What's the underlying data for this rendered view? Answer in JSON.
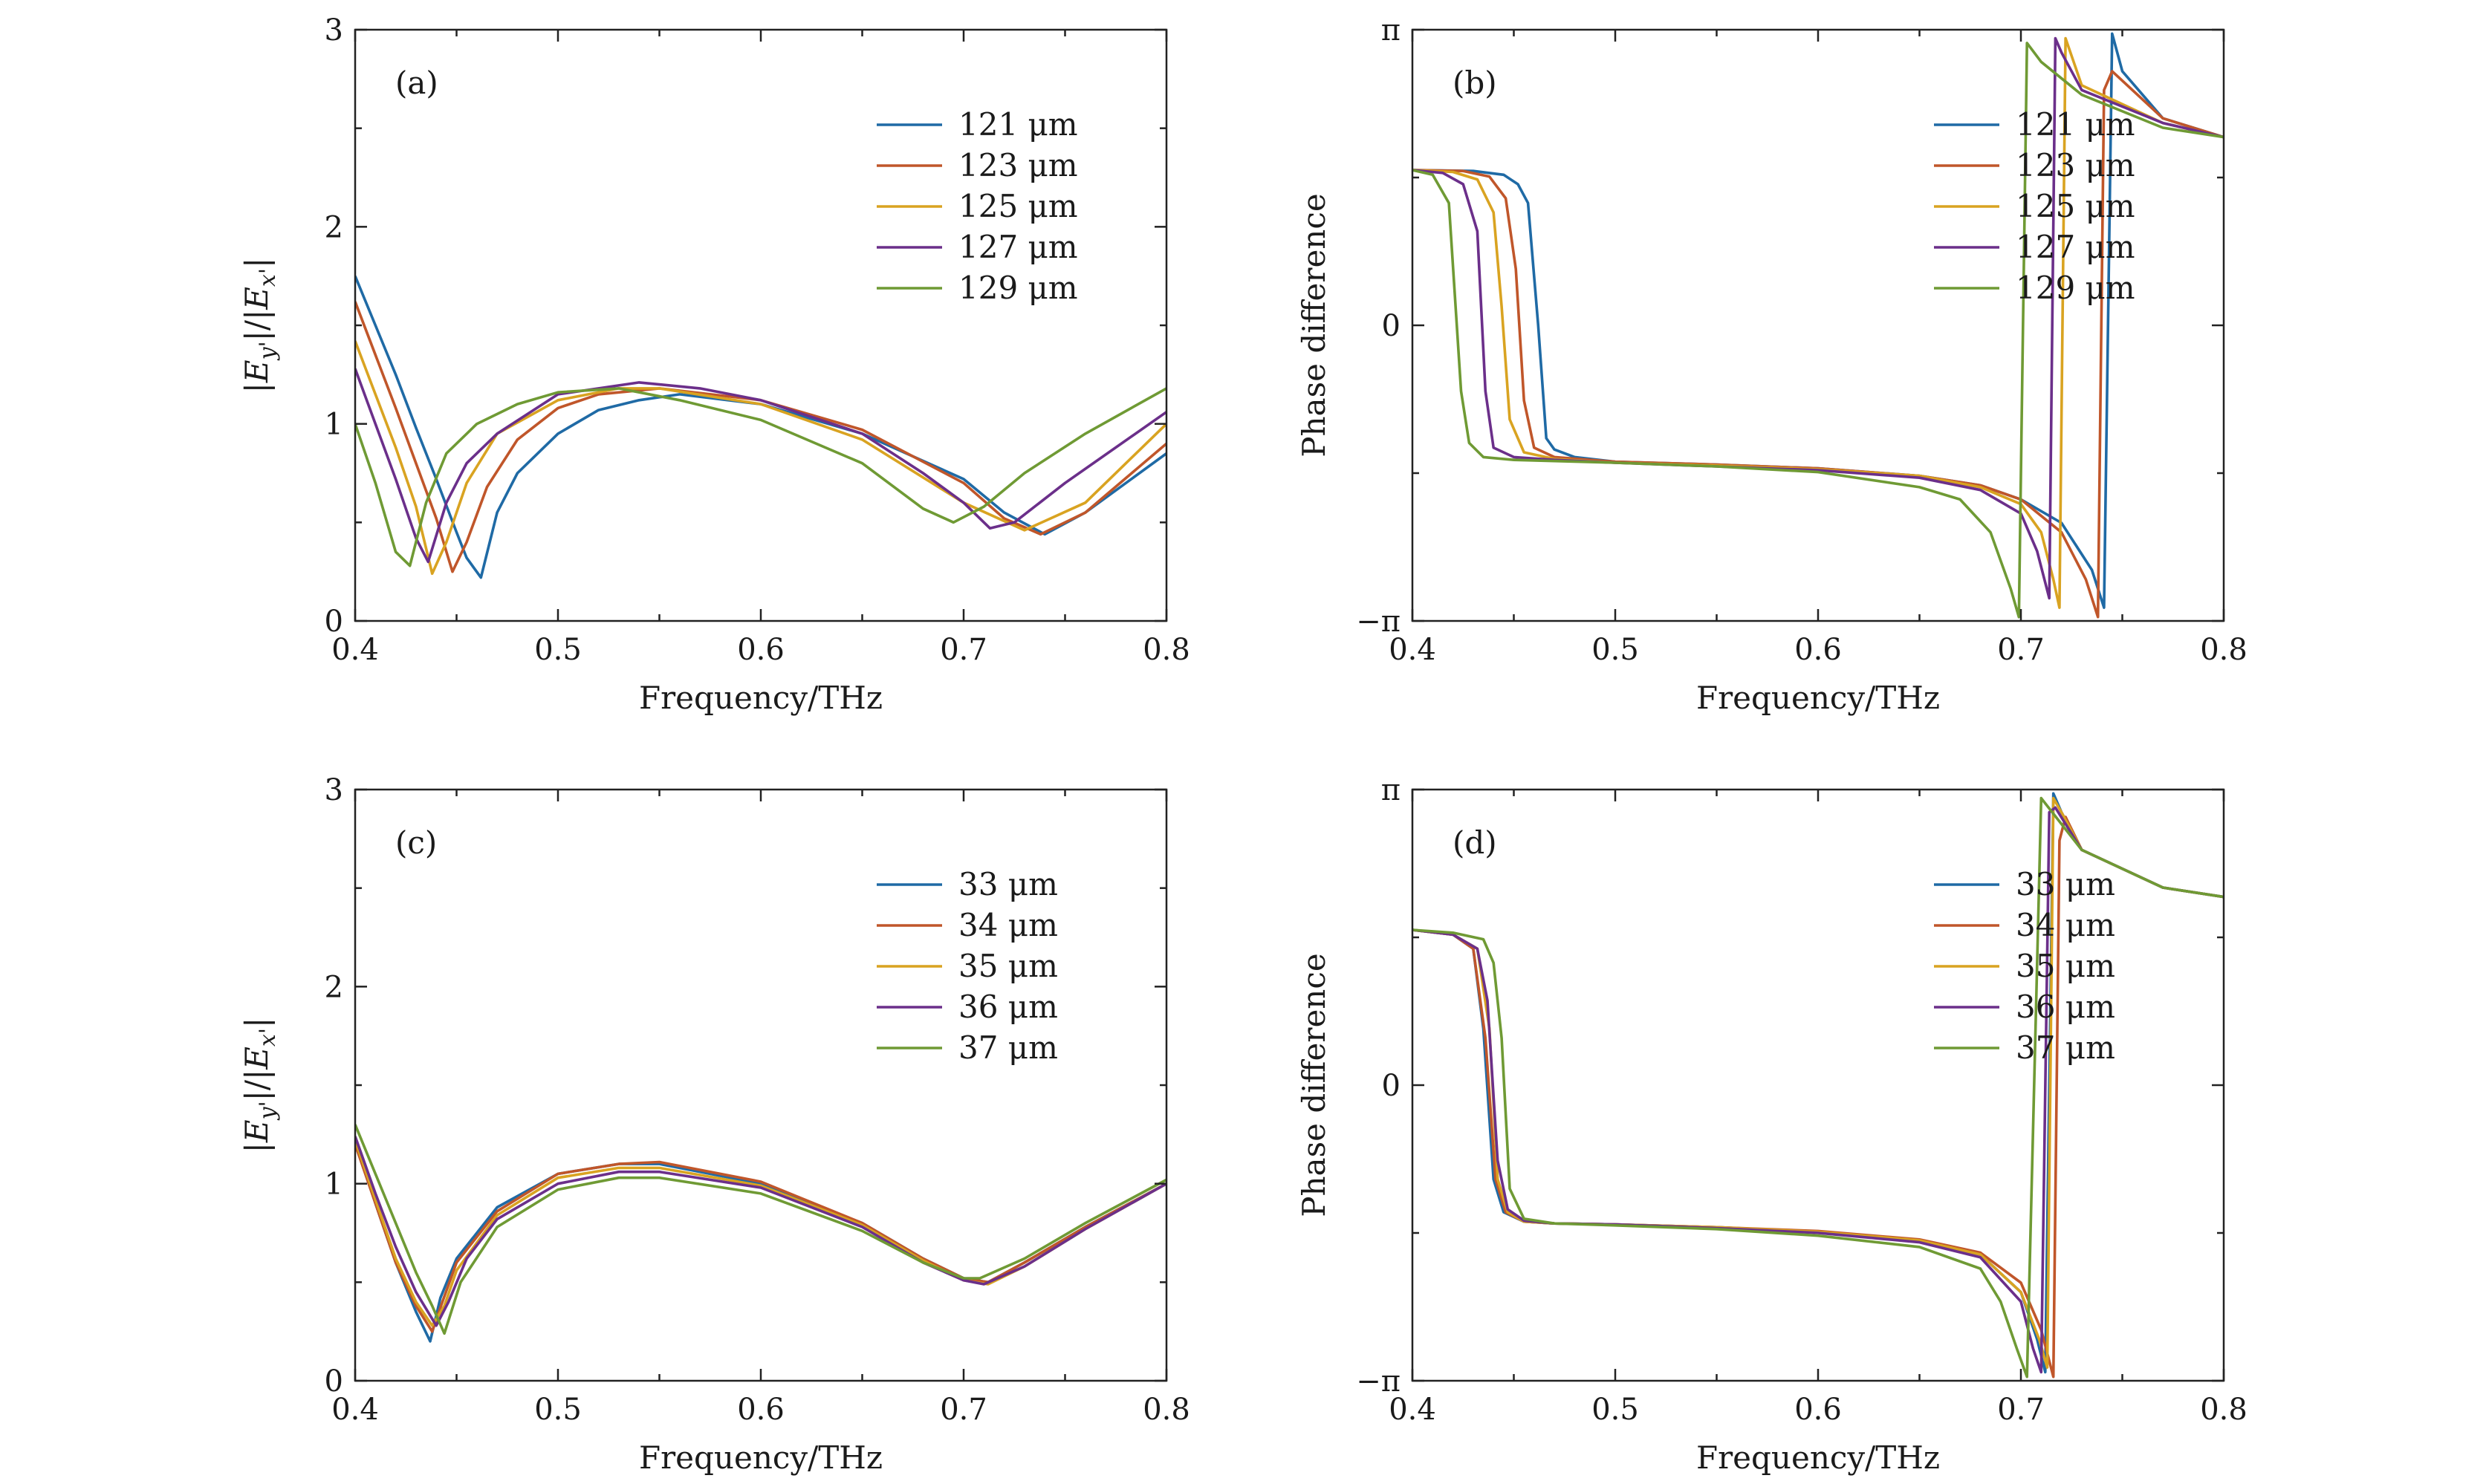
{
  "figure": {
    "colors": [
      "#1f6aa5",
      "#c0562a",
      "#d9a321",
      "#6b2f8a",
      "#6f9a34"
    ]
  },
  "chart_data": [
    {
      "id": "a",
      "panel_label": "(a)",
      "type": "line",
      "title": "",
      "xlabel": "Frequency/THz",
      "ylabel_text": "|E_y'|/|E_x'|",
      "ylabel_parts": {
        "bar1": "|",
        "e1": "E",
        "sub1": "y'",
        "mid": "|/|",
        "e2": "E",
        "sub2": "x'",
        "bar2": "|"
      },
      "xlim": [
        0.4,
        0.8
      ],
      "ylim": [
        0,
        3
      ],
      "xticks": [
        0.4,
        0.5,
        0.6,
        0.7,
        0.8
      ],
      "xtick_labels": [
        "0.4",
        "0.5",
        "0.6",
        "0.7",
        "0.8"
      ],
      "yticks": [
        0,
        1,
        2,
        3
      ],
      "ytick_labels": [
        "0",
        "1",
        "2",
        "3"
      ],
      "legend": "top-right",
      "series": [
        {
          "name": "121 μm",
          "x": [
            0.4,
            0.41,
            0.42,
            0.43,
            0.44,
            0.45,
            0.455,
            0.462,
            0.47,
            0.48,
            0.5,
            0.52,
            0.54,
            0.56,
            0.6,
            0.65,
            0.7,
            0.72,
            0.74,
            0.76,
            0.8
          ],
          "y": [
            1.75,
            1.5,
            1.25,
            0.98,
            0.72,
            0.45,
            0.32,
            0.22,
            0.55,
            0.75,
            0.95,
            1.07,
            1.12,
            1.15,
            1.1,
            0.95,
            0.72,
            0.55,
            0.44,
            0.55,
            0.85
          ]
        },
        {
          "name": "123 μm",
          "x": [
            0.4,
            0.41,
            0.42,
            0.43,
            0.44,
            0.448,
            0.455,
            0.465,
            0.48,
            0.5,
            0.52,
            0.55,
            0.6,
            0.65,
            0.7,
            0.72,
            0.738,
            0.76,
            0.8
          ],
          "y": [
            1.62,
            1.35,
            1.08,
            0.8,
            0.52,
            0.25,
            0.4,
            0.68,
            0.92,
            1.08,
            1.15,
            1.18,
            1.12,
            0.97,
            0.7,
            0.52,
            0.44,
            0.55,
            0.9
          ]
        },
        {
          "name": "125 μm",
          "x": [
            0.4,
            0.41,
            0.42,
            0.43,
            0.438,
            0.445,
            0.455,
            0.47,
            0.5,
            0.53,
            0.55,
            0.6,
            0.65,
            0.7,
            0.73,
            0.76,
            0.8
          ],
          "y": [
            1.42,
            1.15,
            0.88,
            0.58,
            0.24,
            0.4,
            0.7,
            0.95,
            1.12,
            1.18,
            1.18,
            1.1,
            0.92,
            0.6,
            0.46,
            0.6,
            1.0
          ]
        },
        {
          "name": "127 μm",
          "x": [
            0.4,
            0.41,
            0.42,
            0.43,
            0.436,
            0.445,
            0.455,
            0.47,
            0.5,
            0.54,
            0.57,
            0.6,
            0.65,
            0.68,
            0.7,
            0.713,
            0.725,
            0.75,
            0.8
          ],
          "y": [
            1.28,
            1.0,
            0.72,
            0.42,
            0.3,
            0.6,
            0.8,
            0.95,
            1.15,
            1.21,
            1.18,
            1.12,
            0.95,
            0.75,
            0.6,
            0.47,
            0.5,
            0.7,
            1.06
          ]
        },
        {
          "name": "129 μm",
          "x": [
            0.4,
            0.41,
            0.42,
            0.427,
            0.435,
            0.445,
            0.46,
            0.48,
            0.5,
            0.53,
            0.56,
            0.6,
            0.65,
            0.68,
            0.695,
            0.71,
            0.73,
            0.76,
            0.8
          ],
          "y": [
            1.0,
            0.7,
            0.35,
            0.28,
            0.6,
            0.85,
            1.0,
            1.1,
            1.16,
            1.18,
            1.12,
            1.02,
            0.8,
            0.57,
            0.5,
            0.58,
            0.75,
            0.95,
            1.18
          ]
        }
      ]
    },
    {
      "id": "b",
      "panel_label": "(b)",
      "type": "line",
      "title": "",
      "xlabel": "Frequency/THz",
      "ylabel_text": "Phase difference",
      "xlim": [
        0.4,
        0.8
      ],
      "ylim": [
        -3.1416,
        3.1416
      ],
      "xticks": [
        0.4,
        0.5,
        0.6,
        0.7,
        0.8
      ],
      "xtick_labels": [
        "0.4",
        "0.5",
        "0.6",
        "0.7",
        "0.8"
      ],
      "yticks": [
        -3.1416,
        0,
        3.1416
      ],
      "ytick_labels": [
        "−π",
        "0",
        "π"
      ],
      "legend": "top-right",
      "series": [
        {
          "name": "121 μm",
          "x": [
            0.4,
            0.43,
            0.445,
            0.452,
            0.457,
            0.462,
            0.466,
            0.47,
            0.48,
            0.5,
            0.55,
            0.6,
            0.65,
            0.68,
            0.7,
            0.72,
            0.735,
            0.741,
            0.745,
            0.75,
            0.77,
            0.8
          ],
          "y": [
            1.65,
            1.64,
            1.6,
            1.5,
            1.3,
            0.0,
            -1.2,
            -1.32,
            -1.4,
            -1.45,
            -1.48,
            -1.52,
            -1.6,
            -1.7,
            -1.85,
            -2.1,
            -2.6,
            -3.0,
            3.1,
            2.7,
            2.2,
            2.0
          ]
        },
        {
          "name": "123 μm",
          "x": [
            0.4,
            0.425,
            0.438,
            0.446,
            0.451,
            0.455,
            0.46,
            0.47,
            0.5,
            0.55,
            0.6,
            0.65,
            0.68,
            0.7,
            0.72,
            0.732,
            0.738,
            0.741,
            0.745,
            0.77,
            0.8
          ],
          "y": [
            1.65,
            1.64,
            1.58,
            1.35,
            0.6,
            -0.8,
            -1.3,
            -1.4,
            -1.45,
            -1.48,
            -1.52,
            -1.6,
            -1.7,
            -1.85,
            -2.2,
            -2.7,
            -3.1,
            2.5,
            2.7,
            2.2,
            2.0
          ]
        },
        {
          "name": "125 μm",
          "x": [
            0.4,
            0.42,
            0.432,
            0.44,
            0.444,
            0.448,
            0.455,
            0.47,
            0.5,
            0.55,
            0.6,
            0.65,
            0.68,
            0.7,
            0.71,
            0.716,
            0.719,
            0.722,
            0.73,
            0.77,
            0.8
          ],
          "y": [
            1.65,
            1.63,
            1.55,
            1.2,
            0.2,
            -1.0,
            -1.35,
            -1.42,
            -1.46,
            -1.49,
            -1.53,
            -1.6,
            -1.72,
            -1.9,
            -2.2,
            -2.7,
            -3.0,
            3.05,
            2.55,
            2.15,
            2.0
          ]
        },
        {
          "name": "127 μm",
          "x": [
            0.4,
            0.415,
            0.425,
            0.432,
            0.436,
            0.44,
            0.45,
            0.47,
            0.5,
            0.55,
            0.6,
            0.65,
            0.68,
            0.7,
            0.708,
            0.714,
            0.717,
            0.72,
            0.73,
            0.77,
            0.8
          ],
          "y": [
            1.65,
            1.62,
            1.5,
            1.0,
            -0.7,
            -1.3,
            -1.4,
            -1.43,
            -1.46,
            -1.5,
            -1.54,
            -1.62,
            -1.75,
            -2.0,
            -2.4,
            -2.9,
            3.05,
            2.9,
            2.5,
            2.15,
            2.0
          ]
        },
        {
          "name": "129 μm",
          "x": [
            0.4,
            0.41,
            0.418,
            0.424,
            0.428,
            0.435,
            0.45,
            0.5,
            0.55,
            0.6,
            0.65,
            0.67,
            0.685,
            0.695,
            0.699,
            0.703,
            0.71,
            0.73,
            0.77,
            0.8
          ],
          "y": [
            1.65,
            1.6,
            1.3,
            -0.7,
            -1.25,
            -1.4,
            -1.43,
            -1.46,
            -1.5,
            -1.56,
            -1.72,
            -1.85,
            -2.2,
            -2.8,
            -3.1,
            3.0,
            2.8,
            2.45,
            2.1,
            2.0
          ]
        }
      ]
    },
    {
      "id": "c",
      "panel_label": "(c)",
      "type": "line",
      "title": "",
      "xlabel": "Frequency/THz",
      "ylabel_text": "|E_y'|/|E_x'|",
      "ylabel_parts": {
        "bar1": "|",
        "e1": "E",
        "sub1": "y'",
        "mid": "|/|",
        "e2": "E",
        "sub2": "x'",
        "bar2": "|"
      },
      "xlim": [
        0.4,
        0.8
      ],
      "ylim": [
        0,
        3
      ],
      "xticks": [
        0.4,
        0.5,
        0.6,
        0.7,
        0.8
      ],
      "xtick_labels": [
        "0.4",
        "0.5",
        "0.6",
        "0.7",
        "0.8"
      ],
      "yticks": [
        0,
        1,
        2,
        3
      ],
      "ytick_labels": [
        "0",
        "1",
        "2",
        "3"
      ],
      "legend": "top-right",
      "series": [
        {
          "name": "33 μm",
          "x": [
            0.4,
            0.41,
            0.42,
            0.43,
            0.437,
            0.442,
            0.45,
            0.47,
            0.5,
            0.53,
            0.55,
            0.6,
            0.65,
            0.68,
            0.7,
            0.712,
            0.73,
            0.76,
            0.8
          ],
          "y": [
            1.22,
            0.9,
            0.6,
            0.35,
            0.2,
            0.42,
            0.62,
            0.88,
            1.05,
            1.1,
            1.1,
            1.0,
            0.8,
            0.62,
            0.52,
            0.5,
            0.6,
            0.78,
            1.0
          ]
        },
        {
          "name": "34 μm",
          "x": [
            0.4,
            0.41,
            0.42,
            0.43,
            0.438,
            0.443,
            0.45,
            0.47,
            0.5,
            0.53,
            0.55,
            0.6,
            0.65,
            0.68,
            0.7,
            0.712,
            0.73,
            0.76,
            0.8
          ],
          "y": [
            1.2,
            0.9,
            0.6,
            0.38,
            0.25,
            0.4,
            0.6,
            0.86,
            1.05,
            1.1,
            1.11,
            1.01,
            0.8,
            0.62,
            0.52,
            0.5,
            0.6,
            0.78,
            1.0
          ]
        },
        {
          "name": "35 μm",
          "x": [
            0.4,
            0.41,
            0.42,
            0.43,
            0.438,
            0.444,
            0.45,
            0.47,
            0.5,
            0.53,
            0.55,
            0.6,
            0.65,
            0.68,
            0.7,
            0.712,
            0.73,
            0.76,
            0.8
          ],
          "y": [
            1.22,
            0.92,
            0.62,
            0.4,
            0.28,
            0.38,
            0.56,
            0.84,
            1.03,
            1.08,
            1.08,
            0.99,
            0.79,
            0.61,
            0.51,
            0.49,
            0.58,
            0.77,
            1.0
          ]
        },
        {
          "name": "36 μm",
          "x": [
            0.4,
            0.41,
            0.42,
            0.43,
            0.44,
            0.446,
            0.455,
            0.47,
            0.5,
            0.53,
            0.55,
            0.6,
            0.65,
            0.68,
            0.7,
            0.71,
            0.73,
            0.76,
            0.8
          ],
          "y": [
            1.24,
            0.95,
            0.68,
            0.45,
            0.28,
            0.4,
            0.62,
            0.82,
            1.0,
            1.06,
            1.06,
            0.98,
            0.78,
            0.6,
            0.51,
            0.49,
            0.58,
            0.77,
            1.0
          ]
        },
        {
          "name": "37 μm",
          "x": [
            0.4,
            0.41,
            0.42,
            0.43,
            0.438,
            0.444,
            0.452,
            0.47,
            0.5,
            0.53,
            0.55,
            0.6,
            0.65,
            0.68,
            0.7,
            0.708,
            0.73,
            0.76,
            0.8
          ],
          "y": [
            1.3,
            1.05,
            0.8,
            0.55,
            0.38,
            0.24,
            0.5,
            0.78,
            0.97,
            1.03,
            1.03,
            0.95,
            0.76,
            0.6,
            0.52,
            0.52,
            0.62,
            0.8,
            1.02
          ]
        }
      ]
    },
    {
      "id": "d",
      "panel_label": "(d)",
      "type": "line",
      "title": "",
      "xlabel": "Frequency/THz",
      "ylabel_text": "Phase difference",
      "xlim": [
        0.4,
        0.8
      ],
      "ylim": [
        -3.1416,
        3.1416
      ],
      "xticks": [
        0.4,
        0.5,
        0.6,
        0.7,
        0.8
      ],
      "xtick_labels": [
        "0.4",
        "0.5",
        "0.6",
        "0.7",
        "0.8"
      ],
      "yticks": [
        -3.1416,
        0,
        3.1416
      ],
      "ytick_labels": [
        "−π",
        "0",
        "π"
      ],
      "legend": "top-right",
      "series": [
        {
          "name": "33 μm",
          "x": [
            0.4,
            0.42,
            0.43,
            0.435,
            0.44,
            0.445,
            0.455,
            0.47,
            0.5,
            0.55,
            0.6,
            0.65,
            0.68,
            0.7,
            0.708,
            0.712,
            0.716,
            0.72,
            0.73,
            0.77,
            0.8
          ],
          "y": [
            1.65,
            1.6,
            1.45,
            0.6,
            -1.0,
            -1.35,
            -1.45,
            -1.47,
            -1.48,
            -1.51,
            -1.56,
            -1.65,
            -1.8,
            -2.2,
            -2.7,
            -3.05,
            3.1,
            2.9,
            2.5,
            2.1,
            2.0
          ]
        },
        {
          "name": "34 μm",
          "x": [
            0.4,
            0.42,
            0.43,
            0.436,
            0.441,
            0.446,
            0.455,
            0.47,
            0.5,
            0.55,
            0.6,
            0.65,
            0.68,
            0.7,
            0.71,
            0.716,
            0.719,
            0.722,
            0.73,
            0.77,
            0.8
          ],
          "y": [
            1.65,
            1.6,
            1.45,
            0.5,
            -1.0,
            -1.35,
            -1.45,
            -1.47,
            -1.48,
            -1.51,
            -1.55,
            -1.64,
            -1.78,
            -2.1,
            -2.6,
            -3.1,
            2.6,
            2.85,
            2.5,
            2.1,
            2.0
          ]
        },
        {
          "name": "35 μm",
          "x": [
            0.4,
            0.42,
            0.432,
            0.438,
            0.442,
            0.447,
            0.455,
            0.47,
            0.5,
            0.55,
            0.6,
            0.65,
            0.68,
            0.7,
            0.709,
            0.713,
            0.716,
            0.72,
            0.73,
            0.77,
            0.8
          ],
          "y": [
            1.65,
            1.6,
            1.45,
            0.6,
            -1.0,
            -1.35,
            -1.45,
            -1.47,
            -1.48,
            -1.51,
            -1.56,
            -1.65,
            -1.8,
            -2.2,
            -2.7,
            -3.0,
            3.05,
            2.9,
            2.5,
            2.1,
            2.0
          ]
        },
        {
          "name": "36 μm",
          "x": [
            0.4,
            0.42,
            0.432,
            0.437,
            0.442,
            0.447,
            0.455,
            0.47,
            0.5,
            0.55,
            0.6,
            0.65,
            0.68,
            0.7,
            0.706,
            0.71,
            0.714,
            0.717,
            0.73,
            0.77,
            0.8
          ],
          "y": [
            1.65,
            1.6,
            1.45,
            0.9,
            -0.8,
            -1.32,
            -1.44,
            -1.47,
            -1.48,
            -1.52,
            -1.57,
            -1.67,
            -1.83,
            -2.3,
            -2.8,
            -3.05,
            2.9,
            2.95,
            2.5,
            2.1,
            2.0
          ]
        },
        {
          "name": "37 μm",
          "x": [
            0.4,
            0.42,
            0.435,
            0.44,
            0.444,
            0.448,
            0.455,
            0.47,
            0.5,
            0.55,
            0.6,
            0.65,
            0.68,
            0.69,
            0.698,
            0.703,
            0.71,
            0.73,
            0.77,
            0.8
          ],
          "y": [
            1.65,
            1.62,
            1.55,
            1.3,
            0.5,
            -1.1,
            -1.42,
            -1.47,
            -1.49,
            -1.53,
            -1.6,
            -1.72,
            -1.95,
            -2.3,
            -2.8,
            -3.1,
            3.05,
            2.5,
            2.1,
            2.0
          ]
        }
      ]
    }
  ]
}
